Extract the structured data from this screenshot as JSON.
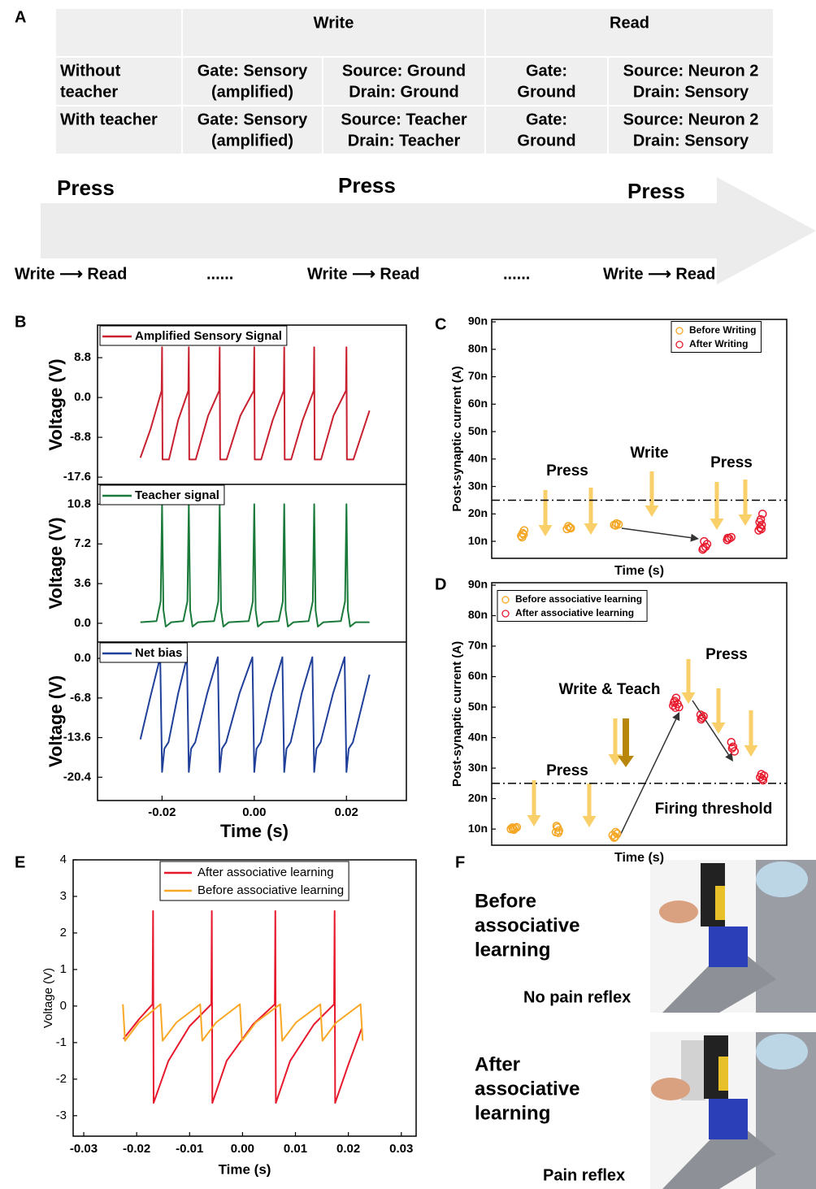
{
  "panel_labels": [
    "A",
    "B",
    "C",
    "D",
    "E",
    "F"
  ],
  "table": {
    "header": [
      "Write",
      "Read"
    ],
    "rows": [
      {
        "label": [
          "Without",
          "teacher"
        ],
        "cells": [
          [
            "Gate: Sensory",
            "(amplified)"
          ],
          [
            "Source: Ground",
            "Drain: Ground"
          ],
          [
            "Gate:",
            "Ground"
          ],
          [
            "Source: Neuron 2",
            "Drain: Sensory"
          ]
        ]
      },
      {
        "label": [
          "With teacher"
        ],
        "cells": [
          [
            "Gate: Sensory",
            "(amplified)"
          ],
          [
            "Source: Teacher",
            "Drain: Teacher"
          ],
          [
            "Gate:",
            "Ground"
          ],
          [
            "Source: Neuron 2",
            "Drain: Sensory"
          ]
        ]
      }
    ]
  },
  "timeline": {
    "press": [
      "Press",
      "Press",
      "Press"
    ],
    "steps": [
      "Write ⟶ Read",
      "......",
      "Write ⟶ Read",
      "......",
      "Write ⟶ Read"
    ]
  },
  "chart_data": [
    {
      "type": "line",
      "xlabel": "Time (s)",
      "xlim": [
        -0.034,
        0.033
      ],
      "xticks": [
        -0.02,
        {
          "value": 0,
          "label": "0.00"
        },
        0.02
      ],
      "subplots": [
        {
          "ylabel": "Voltage (V)",
          "ylim": [
            -19.2,
            16
          ],
          "yticks": [
            8.8,
            {
              "value": 0,
              "label": "0.0"
            },
            -8.8,
            -17.6
          ],
          "series": [
            {
              "name": "Amplified Sensory Signal",
              "color": "#c8202f",
              "x": [
                -0.0247,
                -0.0225,
                -0.0201,
                -0.02,
                -0.0199,
                -0.0185,
                -0.0165,
                -0.0143,
                -0.0142,
                -0.0141,
                -0.0127,
                -0.01,
                -0.0076,
                -0.0075,
                -0.0074,
                -0.006,
                -0.003,
                -0.0001,
                0,
                0.0001,
                0.0015,
                0.004,
                0.0064,
                0.0065,
                0.0066,
                0.008,
                0.0105,
                0.0129,
                0.013,
                0.0131,
                0.0145,
                0.0172,
                0.0199,
                0.02,
                0.0201,
                0.0215,
                0.025
              ],
              "values": [
                -13.3,
                -7,
                1.5,
                11.1,
                -13.7,
                -13.7,
                -5,
                1.5,
                11.1,
                -13.7,
                -13.7,
                -4,
                1.5,
                11.1,
                -13.7,
                -13.7,
                -4,
                1.5,
                11.1,
                -13.7,
                -13.7,
                -5,
                1.5,
                11.1,
                -13.7,
                -13.7,
                -5,
                1.5,
                11.1,
                -13.7,
                -13.7,
                -4,
                1.5,
                11.1,
                -13.7,
                -13.7,
                -2.9
              ]
            }
          ]
        },
        {
          "ylabel": "Voltage (V)",
          "ylim": [
            -1.7,
            12.6
          ],
          "yticks": [
            10.8,
            7.2,
            3.6,
            {
              "value": 0,
              "label": "0.0"
            }
          ],
          "series": [
            {
              "name": "Teacher signal",
              "color": "#1a7a3a",
              "x": [
                -0.0247,
                -0.0212,
                -0.0203,
                -0.02,
                -0.0197,
                -0.0192,
                -0.018,
                -0.0154,
                -0.0145,
                -0.0142,
                -0.0139,
                -0.0134,
                -0.0122,
                -0.0087,
                -0.0078,
                -0.0075,
                -0.0072,
                -0.0067,
                -0.0055,
                -0.0012,
                -0.0003,
                0,
                0.0003,
                0.0008,
                0.002,
                0.0053,
                0.0062,
                0.0065,
                0.0068,
                0.0073,
                0.0085,
                0.0118,
                0.0127,
                0.013,
                0.0133,
                0.0138,
                0.015,
                0.0188,
                0.0197,
                0.02,
                0.0203,
                0.0208,
                0.022,
                0.025
              ],
              "values": [
                0.1,
                0.2,
                2,
                10.8,
                1.2,
                -0.3,
                0.1,
                0.2,
                2,
                10.8,
                1.2,
                -0.3,
                0.1,
                0.2,
                2,
                10.8,
                1.2,
                -0.3,
                0.1,
                0.2,
                2,
                10.8,
                1.2,
                -0.3,
                0.1,
                0.2,
                2,
                10.8,
                1.2,
                -0.3,
                0.1,
                0.2,
                2,
                10.8,
                1.2,
                -0.3,
                0.1,
                0.2,
                2,
                10.8,
                1.2,
                -0.3,
                0.1,
                0.1
              ]
            }
          ]
        },
        {
          "ylabel": "Voltage (V)",
          "ylim": [
            -24.4,
            2.8
          ],
          "yticks": [
            {
              "value": 0,
              "label": "0.0"
            },
            -6.8,
            -13.6,
            -20.4
          ],
          "series": [
            {
              "name": "Net bias",
              "color": "#1f3f99",
              "x": [
                -0.0247,
                -0.0225,
                -0.0204,
                -0.02,
                -0.0195,
                -0.0186,
                -0.0165,
                -0.0146,
                -0.0142,
                -0.0137,
                -0.0128,
                -0.0102,
                -0.0079,
                -0.0075,
                -0.007,
                -0.0061,
                -0.0032,
                -0.0004,
                0,
                0.0005,
                0.0014,
                0.0038,
                0.0061,
                0.0065,
                0.007,
                0.0079,
                0.0103,
                0.0126,
                0.013,
                0.0135,
                0.0144,
                0.0171,
                0.0196,
                0.02,
                0.0205,
                0.0214,
                0.025
              ],
              "values": [
                -13.9,
                -6.5,
                0.2,
                -19.5,
                -15.5,
                -14.4,
                -6,
                0.2,
                -19.5,
                -15.5,
                -14.4,
                -6,
                0.2,
                -19.5,
                -15.5,
                -14.4,
                -6,
                0.2,
                -19.5,
                -15.5,
                -14.4,
                -6,
                0.2,
                -19.5,
                -15.5,
                -14.4,
                -6,
                0.2,
                -19.5,
                -15.5,
                -14.4,
                -6,
                0.2,
                -19.5,
                -15.5,
                -14.4,
                -2.8
              ]
            }
          ]
        }
      ]
    },
    {
      "type": "scatter",
      "xlabel": "Time (s)",
      "ylabel": "Post-synaptic current (A)",
      "xlim": [
        0,
        100
      ],
      "ylim": [
        3.8e-09,
        9.09e-08
      ],
      "yticks": [
        {
          "value": 1e-08,
          "label": "10n"
        },
        {
          "value": 2e-08,
          "label": "20n"
        },
        {
          "value": 3e-08,
          "label": "30n"
        },
        {
          "value": 4e-08,
          "label": "40n"
        },
        {
          "value": 5e-08,
          "label": "50n"
        },
        {
          "value": 6e-08,
          "label": "60n"
        },
        {
          "value": 7e-08,
          "label": "70n"
        },
        {
          "value": 8e-08,
          "label": "80n"
        },
        {
          "value": 9e-08,
          "label": "90n"
        }
      ],
      "threshold": 2.5e-08,
      "annotations": [
        "Press",
        "Write",
        "Press"
      ],
      "series": [
        {
          "name": "Before Writing",
          "color": "#f5a623",
          "x": [
            10,
            10.5,
            11,
            10.3,
            10.8,
            25.5,
            26.5,
            26,
            26.8,
            41.5,
            42.3,
            43,
            42
          ],
          "values": [
            1.2e-08,
            1.3e-08,
            1.4e-08,
            1.15e-08,
            1.25e-08,
            1.45e-08,
            1.5e-08,
            1.55e-08,
            1.48e-08,
            1.6e-08,
            1.65e-08,
            1.62e-08,
            1.58e-08
          ]
        },
        {
          "name": "After Writing",
          "color": "#e8192c",
          "x": [
            71.5,
            72.5,
            73,
            72,
            71.8,
            79.8,
            80.5,
            81.2,
            80,
            90.5,
            91,
            91.5,
            91.2,
            91.8,
            90.8,
            91.4
          ],
          "values": [
            7e-09,
            8e-09,
            9e-09,
            1e-08,
            7.5e-09,
            1.05e-08,
            1.1e-08,
            1.15e-08,
            1.12e-08,
            1.4e-08,
            1.5e-08,
            1.6e-08,
            1.8e-08,
            2e-08,
            1.7e-08,
            1.45e-08
          ]
        }
      ]
    },
    {
      "type": "scatter",
      "xlabel": "Time (s)",
      "ylabel": "Post-synaptic current (A)",
      "xlim": [
        0,
        100
      ],
      "ylim": [
        4.7e-09,
        9.08e-08
      ],
      "yticks": [
        {
          "value": 1e-08,
          "label": "10n"
        },
        {
          "value": 2e-08,
          "label": "20n"
        },
        {
          "value": 3e-08,
          "label": "30n"
        },
        {
          "value": 4e-08,
          "label": "40n"
        },
        {
          "value": 5e-08,
          "label": "50n"
        },
        {
          "value": 6e-08,
          "label": "60n"
        },
        {
          "value": 7e-08,
          "label": "70n"
        },
        {
          "value": 8e-08,
          "label": "80n"
        },
        {
          "value": 9e-08,
          "label": "90n"
        }
      ],
      "threshold": 2.5e-08,
      "annotations": [
        "Press",
        "Write & Teach",
        "Press",
        "Firing threshold"
      ],
      "series": [
        {
          "name": "Before associative learning",
          "color": "#f5a623",
          "x": [
            6.5,
            7,
            7.5,
            8,
            8.5,
            7.2,
            21.8,
            22.3,
            22.8,
            22,
            22.6,
            41,
            41.8,
            42.5,
            42,
            41.5
          ],
          "values": [
            1e-08,
            1.05e-08,
            9.8e-09,
            1.03e-08,
            1.06e-08,
            1.01e-08,
            9e-09,
            1.05e-08,
            9.5e-09,
            1.1e-08,
            8.8e-09,
            8e-09,
            7.5e-09,
            8.5e-09,
            9e-09,
            7.2e-09
          ]
        },
        {
          "name": "After associative learning",
          "color": "#e8192c",
          "x": [
            61.5,
            62,
            62.5,
            63,
            63.5,
            62.3,
            61.8,
            70.8,
            71.3,
            71.8,
            71,
            81.2,
            81.8,
            82.3,
            81.5,
            91,
            91.7,
            92.3,
            92,
            91.4
          ],
          "values": [
            5.05e-08,
            5.2e-08,
            5.3e-08,
            5.1e-08,
            5e-08,
            4.98e-08,
            5.15e-08,
            4.75e-08,
            4.65e-08,
            4.7e-08,
            4.6e-08,
            3.85e-08,
            3.7e-08,
            3.55e-08,
            3.65e-08,
            2.7e-08,
            2.65e-08,
            2.75e-08,
            2.6e-08,
            2.8e-08
          ]
        }
      ]
    },
    {
      "type": "line",
      "xlabel": "Time (s)",
      "ylabel": "Voltage (V)",
      "xlim": [
        -0.032,
        0.0328
      ],
      "ylim": [
        -3.56,
        4
      ],
      "xticks": [
        -0.03,
        -0.02,
        -0.01,
        {
          "value": 0,
          "label": "0.00"
        },
        0.01,
        0.02,
        0.03
      ],
      "yticks": [
        4,
        3,
        2,
        1,
        0,
        -1,
        -2,
        -3
      ],
      "series": [
        {
          "name": "After associative learning",
          "color": "#e8192c",
          "x": [
            -0.0225,
            -0.0195,
            -0.017,
            -0.0169,
            -0.0168,
            -0.014,
            -0.01,
            -0.0059,
            -0.0058,
            -0.0057,
            -0.003,
            0.002,
            0.0061,
            0.0062,
            0.0063,
            0.009,
            0.0135,
            0.0173,
            0.0174,
            0.0175,
            0.02,
            0.0225
          ],
          "values": [
            -0.9,
            -0.35,
            0.05,
            2.6,
            -2.65,
            -1.5,
            -0.55,
            0.05,
            2.6,
            -2.65,
            -1.5,
            -0.5,
            0.05,
            2.6,
            -2.65,
            -1.5,
            -0.5,
            0.05,
            2.6,
            -2.65,
            -1.6,
            -0.62
          ]
        },
        {
          "name": "Before associative learning",
          "color": "#f9a825",
          "x": [
            -0.0226,
            -0.0222,
            -0.0196,
            -0.0155,
            -0.0151,
            -0.0125,
            -0.008,
            -0.0076,
            -0.005,
            -0.0005,
            -0.0001,
            0.0025,
            0.0071,
            0.0075,
            0.0101,
            0.0147,
            0.0151,
            0.0177,
            0.0223,
            0.0227
          ],
          "values": [
            0.05,
            -0.95,
            -0.45,
            0.05,
            -0.95,
            -0.45,
            0.05,
            -0.95,
            -0.45,
            0.05,
            -0.95,
            -0.45,
            0.05,
            -0.95,
            -0.45,
            0.05,
            -0.95,
            -0.45,
            0.05,
            -0.95
          ]
        }
      ]
    }
  ],
  "panel_f": {
    "before": [
      "Before",
      "associative",
      "learning"
    ],
    "before_result": "No pain reflex",
    "after": [
      "After",
      "associative",
      "learning"
    ],
    "after_result": "Pain reflex"
  }
}
